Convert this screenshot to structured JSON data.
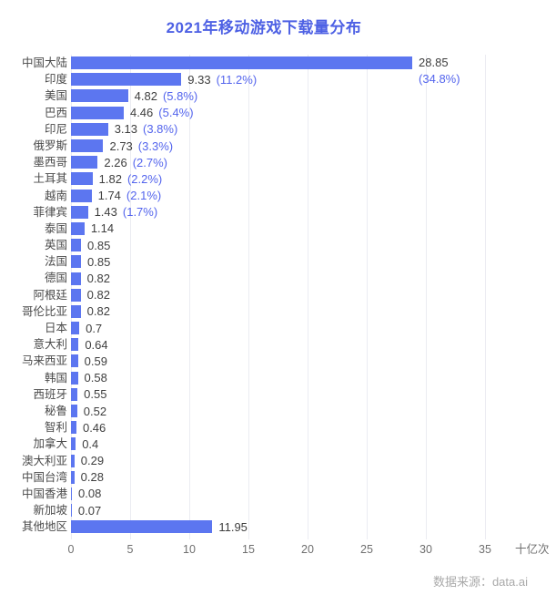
{
  "title": "2021年移动游戏下载量分布",
  "footer": {
    "source": "数据来源：data.ai"
  },
  "colors": {
    "background": "#ffffff",
    "bar": "#5c76f0",
    "title_text": "#4e61e4",
    "category_text": "#4a4a4a",
    "value_text": "#3e3e3e",
    "percent_text": "#5364ed",
    "axis_text": "#6f6f6f",
    "gridline": "#ebecf2",
    "source_text": "#a9a9a9"
  },
  "chart_data": {
    "type": "bar",
    "orientation": "horizontal",
    "title": "2021年移动游戏下载量分布",
    "x_unit": "十亿次",
    "x_ticks": [
      0,
      5,
      10,
      15,
      20,
      25,
      30,
      35
    ],
    "xlim": [
      0,
      35
    ],
    "grid": true,
    "legend": false,
    "rows": [
      {
        "category": "中国大陆",
        "value": 28.85,
        "label": "28.85",
        "percent": "(34.8%)",
        "percent_wraps": true
      },
      {
        "category": "印度",
        "value": 9.33,
        "label": "9.33",
        "percent": "(11.2%)"
      },
      {
        "category": "美国",
        "value": 4.82,
        "label": "4.82",
        "percent": "(5.8%)"
      },
      {
        "category": "巴西",
        "value": 4.46,
        "label": "4.46",
        "percent": "(5.4%)"
      },
      {
        "category": "印尼",
        "value": 3.13,
        "label": "3.13",
        "percent": "(3.8%)"
      },
      {
        "category": "俄罗斯",
        "value": 2.73,
        "label": "2.73",
        "percent": "(3.3%)"
      },
      {
        "category": "墨西哥",
        "value": 2.26,
        "label": "2.26",
        "percent": "(2.7%)"
      },
      {
        "category": "土耳其",
        "value": 1.82,
        "label": "1.82",
        "percent": "(2.2%)"
      },
      {
        "category": "越南",
        "value": 1.74,
        "label": "1.74",
        "percent": "(2.1%)"
      },
      {
        "category": "菲律宾",
        "value": 1.43,
        "label": "1.43",
        "percent": "(1.7%)"
      },
      {
        "category": "泰国",
        "value": 1.14,
        "label": "1.14",
        "percent": null
      },
      {
        "category": "英国",
        "value": 0.85,
        "label": "0.85",
        "percent": null
      },
      {
        "category": "法国",
        "value": 0.85,
        "label": "0.85",
        "percent": null
      },
      {
        "category": "德国",
        "value": 0.82,
        "label": "0.82",
        "percent": null
      },
      {
        "category": "阿根廷",
        "value": 0.82,
        "label": "0.82",
        "percent": null
      },
      {
        "category": "哥伦比亚",
        "value": 0.82,
        "label": "0.82",
        "percent": null
      },
      {
        "category": "日本",
        "value": 0.7,
        "label": "0.7",
        "percent": null
      },
      {
        "category": "意大利",
        "value": 0.64,
        "label": "0.64",
        "percent": null
      },
      {
        "category": "马来西亚",
        "value": 0.59,
        "label": "0.59",
        "percent": null
      },
      {
        "category": "韩国",
        "value": 0.58,
        "label": "0.58",
        "percent": null
      },
      {
        "category": "西班牙",
        "value": 0.55,
        "label": "0.55",
        "percent": null
      },
      {
        "category": "秘鲁",
        "value": 0.52,
        "label": "0.52",
        "percent": null
      },
      {
        "category": "智利",
        "value": 0.46,
        "label": "0.46",
        "percent": null
      },
      {
        "category": "加拿大",
        "value": 0.4,
        "label": "0.4",
        "percent": null
      },
      {
        "category": "澳大利亚",
        "value": 0.29,
        "label": "0.29",
        "percent": null
      },
      {
        "category": "中国台湾",
        "value": 0.28,
        "label": "0.28",
        "percent": null
      },
      {
        "category": "中国香港",
        "value": 0.08,
        "label": "0.08",
        "percent": null
      },
      {
        "category": "新加坡",
        "value": 0.07,
        "label": "0.07",
        "percent": null
      },
      {
        "category": "其他地区",
        "value": 11.95,
        "label": "11.95",
        "percent": null
      }
    ]
  }
}
